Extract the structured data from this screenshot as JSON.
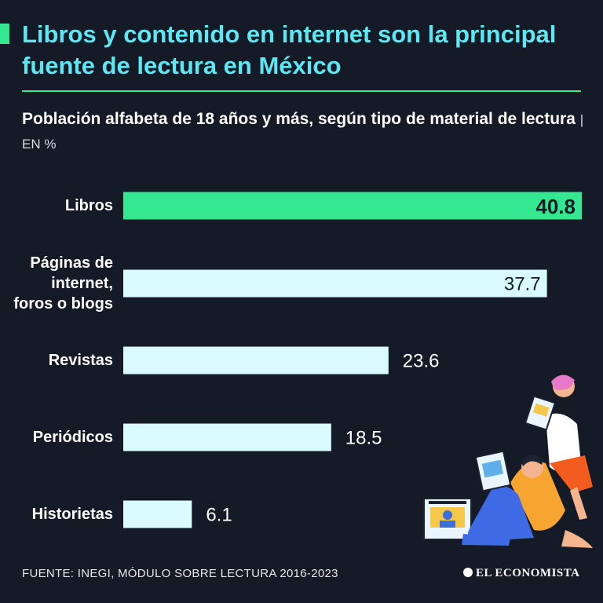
{
  "header": {
    "title": "Libros y contenido en internet son la principal fuente de lectura en México",
    "subtitle": "Población alfabeta de 18 años y más, según tipo de material de lectura",
    "unit": "| EN %"
  },
  "footer": {
    "source": "FUENTE: INEGI, MÓDULO SOBRE LECTURA 2016-2023",
    "brand": "EL ECONOMISTA"
  },
  "colors": {
    "background": "#141a26",
    "title": "#5ee7f2",
    "highlight_bar": "#33e890",
    "bar": "#d9fbff",
    "label": "#ffffff"
  },
  "chart_data": {
    "type": "bar",
    "orientation": "horizontal",
    "categories": [
      [
        "Libros"
      ],
      [
        "Páginas de",
        "internet,",
        "foros o blogs"
      ],
      [
        "Revistas"
      ],
      [
        "Periódicos"
      ],
      [
        "Historietas"
      ]
    ],
    "values": [
      40.8,
      37.7,
      23.6,
      18.5,
      6.1
    ],
    "value_labels": [
      "40.8",
      "37.7",
      "23.6",
      "18.5",
      "6.1"
    ],
    "highlight_index": 0,
    "xlim": [
      0,
      40.8
    ],
    "grid": false,
    "legend": "none"
  }
}
